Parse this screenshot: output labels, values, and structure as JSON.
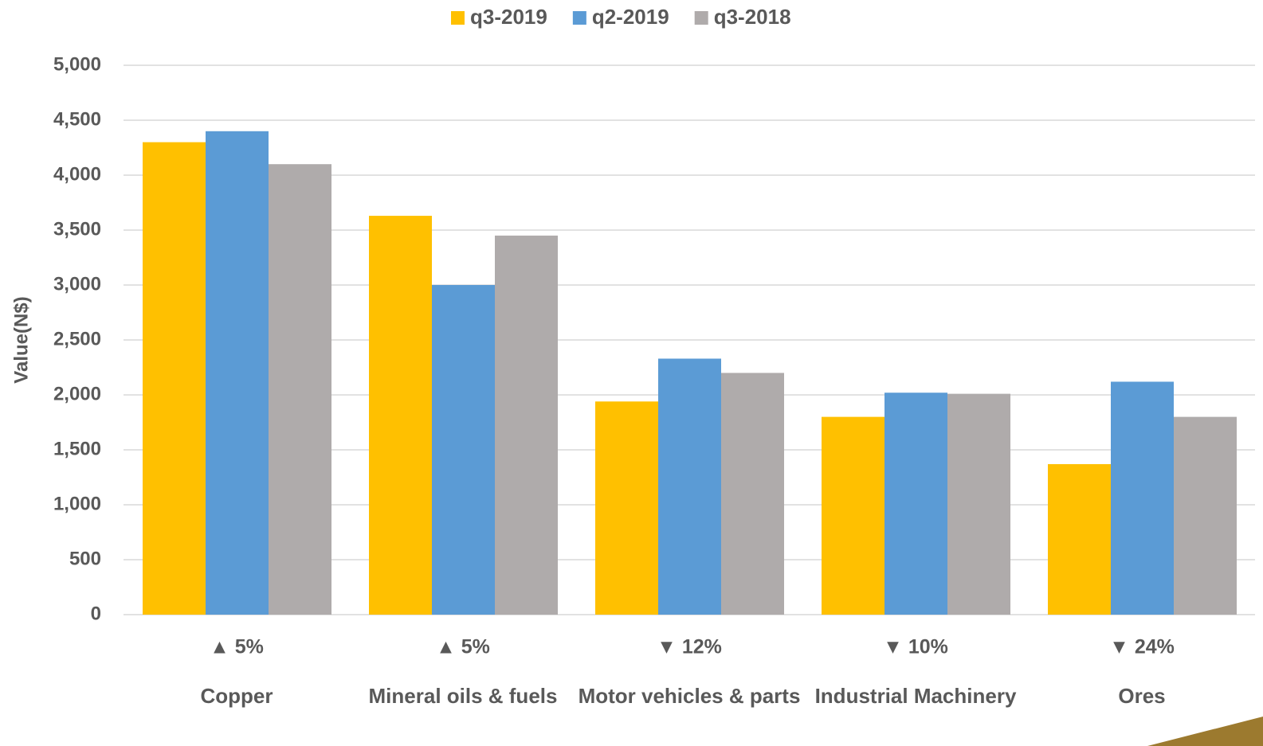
{
  "chart_data": {
    "type": "bar",
    "y_label": "Value(N$)",
    "categories": [
      "Copper",
      "Mineral oils & fuels",
      "Motor vehicles & parts",
      "Industrial Machinery",
      "Ores"
    ],
    "annotations": [
      "▲ 5%",
      "▲ 5%",
      "▼ 12%",
      "▼ 10%",
      "▼ 24%"
    ],
    "series": [
      {
        "name": "q3-2019",
        "color": "#FFC000",
        "values": [
          4300,
          3630,
          1940,
          1800,
          1370
        ]
      },
      {
        "name": "q2-2019",
        "color": "#5B9BD5",
        "values": [
          4400,
          3000,
          2330,
          2020,
          2120
        ]
      },
      {
        "name": "q3-2018",
        "color": "#AFABAB",
        "values": [
          4100,
          3450,
          2200,
          2010,
          1800
        ]
      }
    ],
    "ylim": [
      0,
      5000
    ],
    "yticks": [
      0,
      500,
      {
        "value": 1000,
        "label": "1,000"
      },
      {
        "value": 1500,
        "label": "1,500"
      },
      {
        "value": 2000,
        "label": "2,000"
      },
      {
        "value": 2500,
        "label": "2,500"
      },
      {
        "value": 3000,
        "label": "3,000"
      },
      {
        "value": 3500,
        "label": "3,500"
      },
      {
        "value": 4000,
        "label": "4,000"
      },
      {
        "value": 4500,
        "label": "4,500"
      },
      {
        "value": 5000,
        "label": "5,000"
      }
    ],
    "grid": true,
    "legend": "top"
  }
}
